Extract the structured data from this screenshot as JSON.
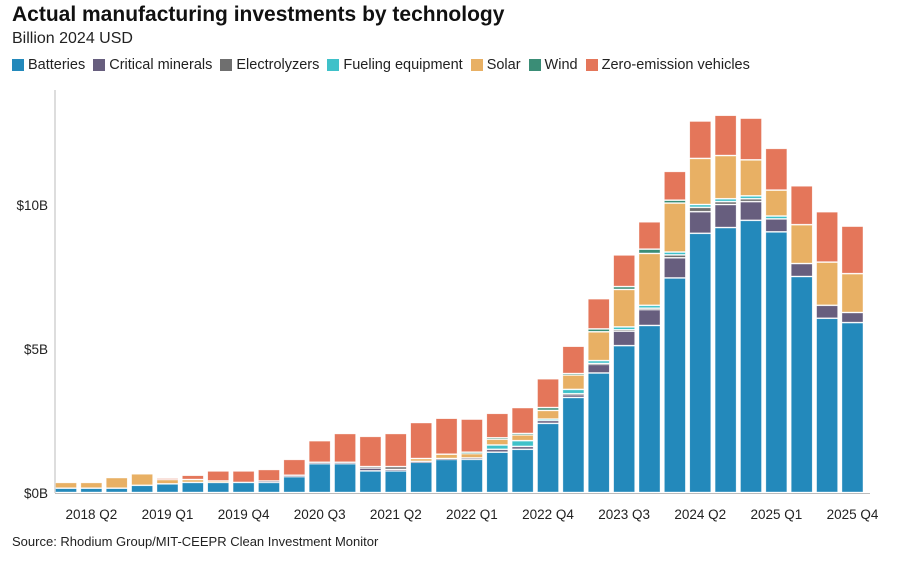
{
  "chart_data": {
    "type": "bar",
    "stacked": true,
    "title": "Actual manufacturing investments by technology",
    "subtitle": "Billion 2024 USD",
    "source": "Source: Rhodium Group/MIT-CEEPR Clean Investment Monitor",
    "ylim": [
      0,
      14
    ],
    "yticks": [
      {
        "v": 0,
        "label": "$0B"
      },
      {
        "v": 5,
        "label": "$5B"
      },
      {
        "v": 10,
        "label": "$10B"
      }
    ],
    "categories": [
      "2018 Q1",
      "2018 Q2",
      "2018 Q3",
      "2018 Q4",
      "2019 Q1",
      "2019 Q2",
      "2019 Q3",
      "2019 Q4",
      "2020 Q1",
      "2020 Q2",
      "2020 Q3",
      "2020 Q4",
      "2021 Q1",
      "2021 Q2",
      "2021 Q3",
      "2021 Q4",
      "2022 Q1",
      "2022 Q2",
      "2022 Q3",
      "2022 Q4",
      "2023 Q1",
      "2023 Q2",
      "2023 Q3",
      "2023 Q4",
      "2024 Q1",
      "2024 Q2",
      "2024 Q3",
      "2024 Q4",
      "2025 Q1",
      "2025 Q2",
      "2025 Q3",
      "2025 Q4"
    ],
    "xticklabels": [
      "2018 Q2",
      "2019 Q1",
      "2019 Q4",
      "2020 Q3",
      "2021 Q2",
      "2022 Q1",
      "2022 Q4",
      "2023 Q3",
      "2024 Q2",
      "2025 Q1",
      "2025 Q4"
    ],
    "series": [
      {
        "name": "Batteries",
        "color": "#2389bb",
        "values": [
          0.15,
          0.15,
          0.15,
          0.25,
          0.3,
          0.35,
          0.35,
          0.35,
          0.35,
          0.55,
          1.0,
          1.0,
          0.75,
          0.75,
          1.05,
          1.15,
          1.15,
          1.4,
          1.5,
          2.4,
          3.3,
          4.15,
          5.1,
          5.8,
          7.45,
          9.0,
          9.2,
          9.45,
          9.05,
          7.5,
          6.05,
          5.9
        ]
      },
      {
        "name": "Critical minerals",
        "color": "#675e7e",
        "values": [
          0,
          0,
          0,
          0,
          0,
          0,
          0,
          0,
          0.05,
          0.05,
          0.05,
          0.05,
          0.1,
          0.05,
          0.03,
          0.03,
          0.05,
          0.1,
          0.1,
          0.1,
          0.1,
          0.3,
          0.5,
          0.55,
          0.7,
          0.75,
          0.8,
          0.65,
          0.45,
          0.45,
          0.45,
          0.35
        ]
      },
      {
        "name": "Electrolyzers",
        "color": "#6f6f6f",
        "values": [
          0,
          0,
          0,
          0,
          0,
          0,
          0,
          0,
          0,
          0,
          0,
          0,
          0.05,
          0.1,
          0,
          0,
          0,
          0,
          0,
          0,
          0.03,
          0.03,
          0.05,
          0.05,
          0.1,
          0.15,
          0.1,
          0.1,
          0,
          0,
          0,
          0
        ]
      },
      {
        "name": "Fueling equipment",
        "color": "#3fc1c9",
        "values": [
          0,
          0,
          0,
          0,
          0,
          0,
          0,
          0,
          0,
          0,
          0,
          0,
          0,
          0,
          0,
          0,
          0,
          0.15,
          0.2,
          0.05,
          0.15,
          0.1,
          0.1,
          0.1,
          0.1,
          0.1,
          0.1,
          0.1,
          0.1,
          0,
          0,
          0
        ]
      },
      {
        "name": "Solar",
        "color": "#e8b064",
        "values": [
          0.2,
          0.2,
          0.37,
          0.4,
          0.15,
          0.1,
          0.05,
          0,
          0,
          0,
          0,
          0,
          0,
          0,
          0.1,
          0.15,
          0.15,
          0.2,
          0.2,
          0.3,
          0.5,
          1.0,
          1.3,
          1.8,
          1.7,
          1.6,
          1.5,
          1.25,
          0.9,
          1.35,
          1.5,
          1.35
        ]
      },
      {
        "name": "Wind",
        "color": "#3a8d76",
        "values": [
          0,
          0,
          0,
          0,
          0,
          0,
          0,
          0,
          0,
          0,
          0,
          0,
          0,
          0,
          0,
          0,
          0.05,
          0.05,
          0.05,
          0.1,
          0.05,
          0.1,
          0.1,
          0.15,
          0.1,
          0,
          0,
          0,
          0,
          0,
          0,
          0
        ]
      },
      {
        "name": "Zero-emission vehicles",
        "color": "#e4765a",
        "values": [
          0,
          0,
          0,
          0,
          0.05,
          0.15,
          0.35,
          0.4,
          0.4,
          0.55,
          0.75,
          1.0,
          1.05,
          1.15,
          1.25,
          1.25,
          1.15,
          0.85,
          0.9,
          1.0,
          0.95,
          1.05,
          1.1,
          0.95,
          1.0,
          1.3,
          1.4,
          1.45,
          1.45,
          1.35,
          1.75,
          1.65
        ]
      }
    ]
  }
}
